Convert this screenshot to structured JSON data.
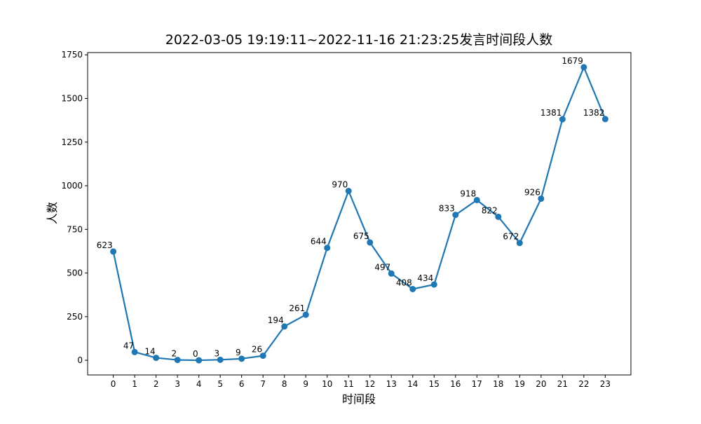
{
  "chart_data": {
    "type": "line",
    "title": "2022-03-05 19:19:11~2022-11-16 21:23:25发言时间段人数",
    "xlabel": "时间段",
    "ylabel": "人数",
    "x": [
      0,
      1,
      2,
      3,
      4,
      5,
      6,
      7,
      8,
      9,
      10,
      11,
      12,
      13,
      14,
      15,
      16,
      17,
      18,
      19,
      20,
      21,
      22,
      23
    ],
    "series": [
      {
        "values": [
          623,
          47,
          14,
          2,
          0,
          3,
          9,
          26,
          194,
          261,
          644,
          970,
          675,
          497,
          408,
          434,
          833,
          918,
          822,
          672,
          926,
          1381,
          1679,
          1382
        ]
      }
    ],
    "xlim": [
      -1.2,
      24.2
    ],
    "ylim": [
      -84,
      1763
    ],
    "yticks": [
      0,
      250,
      500,
      750,
      1000,
      1250,
      1500,
      1750
    ],
    "grid": false,
    "legend": "none",
    "line_color": "#1f77b4"
  }
}
